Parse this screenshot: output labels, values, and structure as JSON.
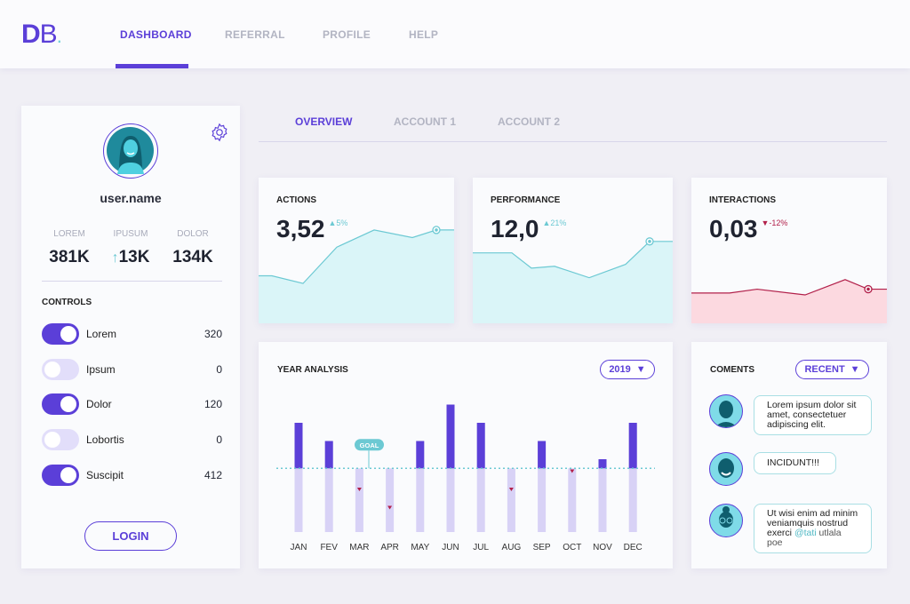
{
  "header": {
    "logo": {
      "d": "D",
      "b": "B",
      "dot": "."
    },
    "nav": [
      {
        "label": "DASHBOARD",
        "active": true
      },
      {
        "label": "REFERRAL"
      },
      {
        "label": "PROFILE"
      },
      {
        "label": "HELP"
      }
    ]
  },
  "profile": {
    "username": "user.name",
    "stats": [
      {
        "label": "LOREM",
        "value": "381K"
      },
      {
        "label": "IPUSUM",
        "value": "13K",
        "trend": "↑"
      },
      {
        "label": "DOLOR",
        "value": "134K"
      }
    ],
    "controls_title": "CONTROLS",
    "controls": [
      {
        "label": "Lorem",
        "value": "320",
        "on": true
      },
      {
        "label": "Ipsum",
        "value": "0",
        "on": false
      },
      {
        "label": "Dolor",
        "value": "120",
        "on": true
      },
      {
        "label": "Lobortis",
        "value": "0",
        "on": false
      },
      {
        "label": "Suscipit",
        "value": "412",
        "on": true
      }
    ],
    "login": "LOGIN"
  },
  "tabs": [
    {
      "label": "OVERVIEW",
      "active": true
    },
    {
      "label": "ACCOUNT 1"
    },
    {
      "label": "ACCOUNT 2"
    }
  ],
  "kpis": [
    {
      "title": "ACTIONS",
      "value": "3,52",
      "change": "▲5%",
      "trend": "up",
      "color": "#6cc9d3",
      "fill": "#daf5f8",
      "series": [
        3.0,
        3.0,
        2.6,
        4.5,
        5.4,
        5.0,
        5.4,
        5.4
      ]
    },
    {
      "title": "PERFORMANCE",
      "value": "12,0",
      "change": "▲21%",
      "trend": "up",
      "color": "#6cc9d3",
      "fill": "#daf5f8",
      "series": [
        4.2,
        4.2,
        3.4,
        3.5,
        2.9,
        3.6,
        4.8,
        4.8
      ]
    },
    {
      "title": "INTERACTIONS",
      "value": "0,03",
      "change": "▼-12%",
      "trend": "down",
      "color": "#b2204a",
      "fill": "#fcd9e0",
      "series": [
        2.1,
        2.1,
        2.3,
        2.0,
        2.8,
        2.3,
        2.3
      ]
    }
  ],
  "colors": {
    "accent": "#5b3fd8",
    "teal": "#6cc9d3",
    "down": "#b2204a"
  },
  "chart_data": {
    "type": "bar",
    "title": "YEAR ANALYSIS",
    "categories": [
      "JAN",
      "FEV",
      "MAR",
      "APR",
      "MAY",
      "JUN",
      "JUL",
      "AUG",
      "SEP",
      "OCT",
      "NOV",
      "DEC"
    ],
    "values": [
      6,
      5,
      2,
      1,
      5,
      7,
      6,
      2,
      5,
      3,
      4,
      6
    ],
    "goal": 3.5,
    "goal_label": "GOAL",
    "ylim": [
      0,
      7.5
    ],
    "grid": false,
    "year_selector": "2019"
  },
  "comments": {
    "title": "COMENTS",
    "filter": "RECENT",
    "items": [
      {
        "text": "Lorem ipsum dolor sit amet, consectetuer adipiscing elit."
      },
      {
        "text": "INCIDUNT!!!"
      },
      {
        "text_pre": "Ut wisi enim ad minim veniamquis nostrud exerci ",
        "mention": "@tati",
        "text_post": " utlala poe"
      }
    ]
  }
}
